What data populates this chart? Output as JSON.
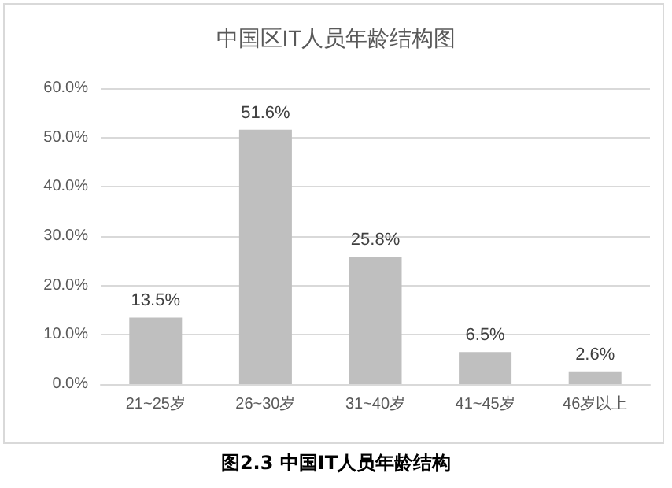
{
  "chart_data": {
    "type": "bar",
    "title": "中国区IT人员年龄结构图",
    "categories": [
      "21~25岁",
      "26~30岁",
      "31~40岁",
      "41~45岁",
      "46岁以上"
    ],
    "values": [
      13.5,
      51.6,
      25.8,
      6.5,
      2.6
    ],
    "value_labels": [
      "13.5%",
      "51.6%",
      "25.8%",
      "6.5%",
      "2.6%"
    ],
    "color": "#bfbfbf",
    "ylim": [
      0,
      60
    ],
    "yticks": [
      {
        "value": 0,
        "label": "0.0%"
      },
      {
        "value": 10,
        "label": "10.0%"
      },
      {
        "value": 20,
        "label": "20.0%"
      },
      {
        "value": 30,
        "label": "30.0%"
      },
      {
        "value": 40,
        "label": "40.0%"
      },
      {
        "value": 50,
        "label": "50.0%"
      },
      {
        "value": 60,
        "label": "60.0%"
      }
    ],
    "grid": "y",
    "annotations": [
      "图2.3 中国IT人员年龄结构"
    ]
  }
}
